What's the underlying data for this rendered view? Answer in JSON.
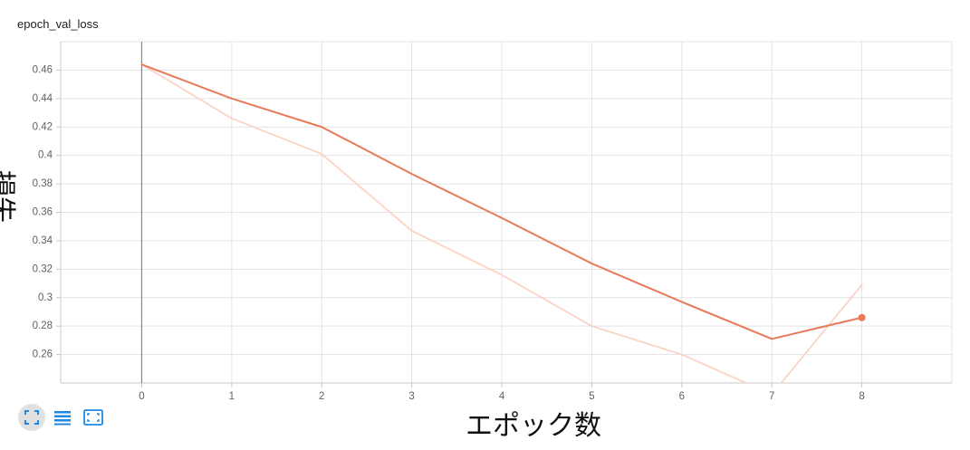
{
  "chart_data": {
    "type": "line",
    "title": "epoch_val_loss",
    "xlabel": "エポック数",
    "ylabel": "損失",
    "xlim": [
      -0.9,
      9
    ],
    "ylim": [
      0.24,
      0.48
    ],
    "x_ticks": [
      "0",
      "1",
      "2",
      "3",
      "4",
      "5",
      "6",
      "7",
      "8"
    ],
    "y_ticks": [
      "0.26",
      "0.28",
      "0.3",
      "0.32",
      "0.34",
      "0.36",
      "0.38",
      "0.4",
      "0.42",
      "0.44",
      "0.46"
    ],
    "grid": true,
    "series": [
      {
        "role": "raw",
        "color": "#fbd3c6",
        "x": [
          0,
          1,
          2,
          3,
          4,
          5,
          6,
          7,
          8
        ],
        "y": [
          0.464,
          0.426,
          0.401,
          0.347,
          0.316,
          0.28,
          0.26,
          0.232,
          0.309
        ]
      },
      {
        "role": "smoothed",
        "color": "#e8795a",
        "x": [
          0,
          1,
          2,
          3,
          4,
          5,
          6,
          7,
          8
        ],
        "y": [
          0.464,
          0.44,
          0.42,
          0.387,
          0.356,
          0.324,
          0.297,
          0.271,
          0.286
        ]
      }
    ],
    "highlight_point": {
      "x": 8,
      "y": 0.286
    },
    "cursor_x": 0
  },
  "toolbar": {
    "buttons": [
      {
        "icon": "fullscreen-icon",
        "active": true
      },
      {
        "icon": "legend-lines-icon",
        "active": false
      },
      {
        "icon": "fit-domain-icon",
        "active": false
      }
    ]
  },
  "colors": {
    "grid": "#e3e3e3",
    "axis": "#c8c8c8",
    "cursor": "#888888",
    "toolbar_icon": "#1e88e5"
  }
}
